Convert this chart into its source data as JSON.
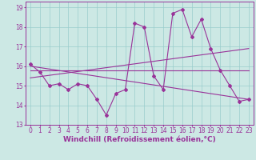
{
  "title": "",
  "xlabel": "Windchill (Refroidissement éolien,°C)",
  "ylabel": "",
  "background_color": "#cce8e4",
  "line_color": "#993399",
  "grid_color": "#99cccc",
  "xlim": [
    -0.5,
    23.5
  ],
  "ylim": [
    13,
    19.3
  ],
  "yticks": [
    13,
    14,
    15,
    16,
    17,
    18,
    19
  ],
  "xticks": [
    0,
    1,
    2,
    3,
    4,
    5,
    6,
    7,
    8,
    9,
    10,
    11,
    12,
    13,
    14,
    15,
    16,
    17,
    18,
    19,
    20,
    21,
    22,
    23
  ],
  "series1_x": [
    0,
    1,
    2,
    3,
    4,
    5,
    6,
    7,
    8,
    9,
    10,
    11,
    12,
    13,
    14,
    15,
    16,
    17,
    18,
    19,
    20,
    21,
    22,
    23
  ],
  "series1_y": [
    16.1,
    15.7,
    15.0,
    15.1,
    14.8,
    15.1,
    15.0,
    14.3,
    13.5,
    14.6,
    14.8,
    18.2,
    18.0,
    15.5,
    14.8,
    18.7,
    18.9,
    17.5,
    18.4,
    16.9,
    15.8,
    15.0,
    14.2,
    14.3
  ],
  "series2_x": [
    0,
    23
  ],
  "series2_y": [
    15.8,
    15.8
  ],
  "series3_x": [
    0,
    23
  ],
  "series3_y": [
    15.4,
    16.9
  ],
  "series4_x": [
    0,
    23
  ],
  "series4_y": [
    16.0,
    14.3
  ],
  "tick_fontsize": 5.5,
  "xlabel_fontsize": 6.5
}
